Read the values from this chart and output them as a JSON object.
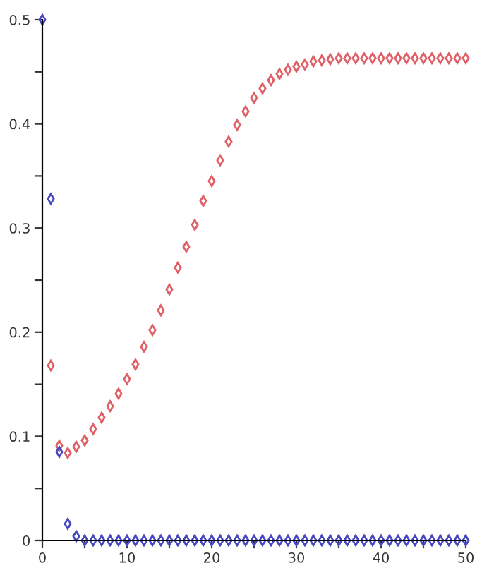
{
  "chart_data": {
    "type": "scatter",
    "marker": "diamond",
    "grid": false,
    "xlim": [
      0,
      50
    ],
    "ylim": [
      0,
      0.5
    ],
    "xticks": [
      0,
      {
        "value": 5,
        "label": null
      },
      10,
      {
        "value": 15,
        "label": null
      },
      20,
      {
        "value": 25,
        "label": null
      },
      30,
      {
        "value": 35,
        "label": null
      },
      40,
      {
        "value": 45,
        "label": null
      },
      50
    ],
    "yticks": [
      0,
      {
        "value": 0.05,
        "label": null
      },
      0.1,
      {
        "value": 0.15,
        "label": null
      },
      0.2,
      {
        "value": 0.25,
        "label": null
      },
      0.3,
      {
        "value": 0.35,
        "label": null
      },
      0.4,
      {
        "value": 0.45,
        "label": null
      },
      0.5
    ],
    "series": [
      {
        "color": "#e06068",
        "x": [
          1,
          2,
          3,
          4,
          5,
          6,
          7,
          8,
          9,
          10,
          11,
          12,
          13,
          14,
          15,
          16,
          17,
          18,
          19,
          20,
          21,
          22,
          23,
          24,
          25,
          26,
          27,
          28,
          29,
          30,
          31,
          32,
          33,
          34,
          35,
          36,
          37,
          38,
          39,
          40,
          41,
          42,
          43,
          44,
          45,
          46,
          47,
          48,
          49,
          50
        ],
        "values": [
          0.168,
          0.091,
          0.084,
          0.09,
          0.096,
          0.107,
          0.118,
          0.129,
          0.141,
          0.155,
          0.169,
          0.186,
          0.202,
          0.221,
          0.241,
          0.262,
          0.282,
          0.303,
          0.326,
          0.345,
          0.365,
          0.383,
          0.399,
          0.412,
          0.425,
          0.434,
          0.442,
          0.448,
          0.452,
          0.455,
          0.457,
          0.46,
          0.461,
          0.462,
          0.463,
          0.463,
          0.463,
          0.463,
          0.463,
          0.463,
          0.463,
          0.463,
          0.463,
          0.463,
          0.463,
          0.463,
          0.463,
          0.463,
          0.463,
          0.463
        ]
      },
      {
        "color": "#4848c0",
        "x": [
          0,
          1,
          2,
          3,
          4,
          5,
          6,
          7,
          8,
          9,
          10,
          11,
          12,
          13,
          14,
          15,
          16,
          17,
          18,
          19,
          20,
          21,
          22,
          23,
          24,
          25,
          26,
          27,
          28,
          29,
          30,
          31,
          32,
          33,
          34,
          35,
          36,
          37,
          38,
          39,
          40,
          41,
          42,
          43,
          44,
          45,
          46,
          47,
          48,
          49,
          50
        ],
        "values": [
          0.5,
          0.328,
          0.085,
          0.016,
          0.004,
          0,
          0,
          0,
          0,
          0,
          0,
          0,
          0,
          0,
          0,
          0,
          0,
          0,
          0,
          0,
          0,
          0,
          0,
          0,
          0,
          0,
          0,
          0,
          0,
          0,
          0,
          0,
          0,
          0,
          0,
          0,
          0,
          0,
          0,
          0,
          0,
          0,
          0,
          0,
          0,
          0,
          0,
          0,
          0,
          0,
          0
        ]
      }
    ]
  }
}
